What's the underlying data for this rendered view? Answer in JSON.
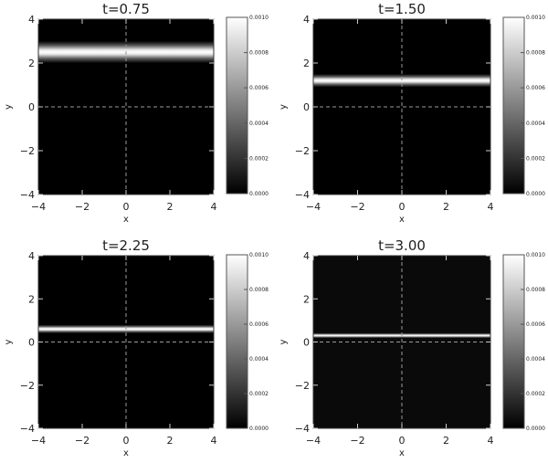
{
  "chart_data": [
    {
      "type": "heatmap",
      "title": "t=0.75",
      "xlabel": "x",
      "ylabel": "y",
      "xlim": [
        -4,
        4
      ],
      "ylim": [
        -4,
        4
      ],
      "xticks": [
        -4,
        -2,
        0,
        2,
        4
      ],
      "yticks": [
        -4,
        -2,
        0,
        2,
        4
      ],
      "band": {
        "y_center": 2.5,
        "half_width": 0.5,
        "peak": 0.001
      },
      "colorbar": {
        "range": [
          0,
          0.001
        ],
        "ticks": [
          "0.0000",
          "0.0002",
          "0.0004",
          "0.0006",
          "0.0008",
          "0.0010"
        ],
        "colormap": "grayscale"
      },
      "background": "#000000",
      "crosshair": {
        "x": 0,
        "y": 0,
        "style": "dashed"
      }
    },
    {
      "type": "heatmap",
      "title": "t=1.50",
      "xlabel": "x",
      "ylabel": "y",
      "xlim": [
        -4,
        4
      ],
      "ylim": [
        -4,
        4
      ],
      "xticks": [
        -4,
        -2,
        0,
        2,
        4
      ],
      "yticks": [
        -4,
        -2,
        0,
        2,
        4
      ],
      "band": {
        "y_center": 1.2,
        "half_width": 0.3,
        "peak": 0.001
      },
      "colorbar": {
        "range": [
          0,
          0.001
        ],
        "ticks": [
          "0.0000",
          "0.0002",
          "0.0004",
          "0.0006",
          "0.0008",
          "0.0010"
        ],
        "colormap": "grayscale"
      },
      "background": "#000000",
      "crosshair": {
        "x": 0,
        "y": 0,
        "style": "dashed"
      }
    },
    {
      "type": "heatmap",
      "title": "t=2.25",
      "xlabel": "x",
      "ylabel": "y",
      "xlim": [
        -4,
        4
      ],
      "ylim": [
        -4,
        4
      ],
      "xticks": [
        -4,
        -2,
        0,
        2,
        4
      ],
      "yticks": [
        -4,
        -2,
        0,
        2,
        4
      ],
      "band": {
        "y_center": 0.6,
        "half_width": 0.2,
        "peak": 0.001
      },
      "colorbar": {
        "range": [
          0,
          0.001
        ],
        "ticks": [
          "0.0000",
          "0.0002",
          "0.0004",
          "0.0006",
          "0.0008",
          "0.0010"
        ],
        "colormap": "grayscale"
      },
      "background": "#000000",
      "crosshair": {
        "x": 0,
        "y": 0,
        "style": "dashed"
      }
    },
    {
      "type": "heatmap",
      "title": "t=3.00",
      "xlabel": "x",
      "ylabel": "y",
      "xlim": [
        -4,
        4
      ],
      "ylim": [
        -4,
        4
      ],
      "xticks": [
        -4,
        -2,
        0,
        2,
        4
      ],
      "yticks": [
        -4,
        -2,
        0,
        2,
        4
      ],
      "band": {
        "y_center": 0.3,
        "half_width": 0.12,
        "peak": 0.001
      },
      "colorbar": {
        "range": [
          0,
          0.001
        ],
        "ticks": [
          "0.0000",
          "0.0002",
          "0.0004",
          "0.0006",
          "0.0008",
          "0.0010"
        ],
        "colormap": "grayscale"
      },
      "background": "#0a0a0a",
      "crosshair": {
        "x": 0,
        "y": 0,
        "style": "dashed"
      }
    }
  ]
}
